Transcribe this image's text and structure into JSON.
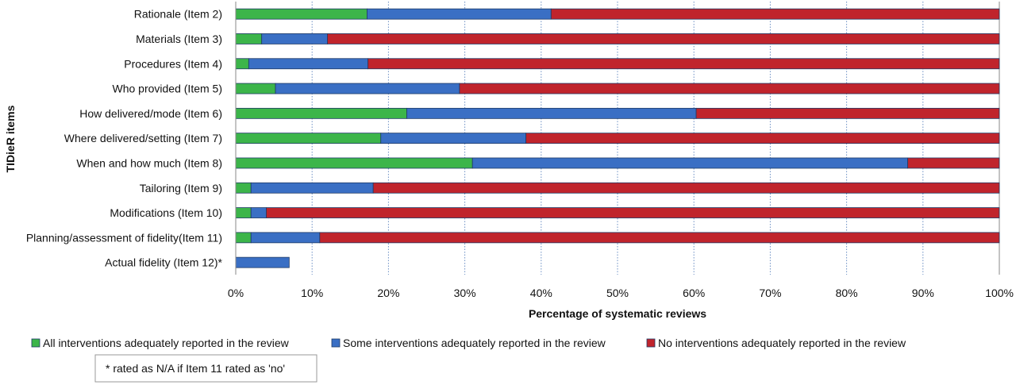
{
  "chart_data": {
    "type": "bar",
    "orientation": "horizontal",
    "stacked": true,
    "categories": [
      "Rationale (Item 2)",
      "Materials (Item 3)",
      "Procedures (Item 4)",
      "Who provided (Item 5)",
      "How delivered/mode (Item 6)",
      "Where delivered/setting (Item 7)",
      "When and how much (Item 8)",
      "Tailoring (Item 9)",
      "Modifications (Item 10)",
      "Planning/assessment of fidelity(Item 11)",
      "Actual fidelity (Item 12)*"
    ],
    "series": [
      {
        "name": "All interventions adequately reported in the review",
        "color": "#3cb54a",
        "values": [
          17.2,
          3.4,
          1.7,
          5.2,
          22.4,
          19.0,
          31.0,
          2.0,
          2.0,
          2.0,
          0
        ]
      },
      {
        "name": "Some interventions adequately reported in the review",
        "color": "#3a6fc4",
        "values": [
          24.1,
          8.6,
          15.6,
          24.1,
          37.9,
          19.0,
          57.0,
          16.0,
          2.0,
          9.0,
          7.0
        ]
      },
      {
        "name": "No interventions adequately reported in the review",
        "color": "#c0242c",
        "values": [
          58.7,
          88.0,
          82.7,
          70.7,
          39.7,
          62.0,
          12.0,
          82.0,
          96.0,
          89.0,
          0
        ]
      }
    ],
    "xlabel": "Percentage of systematic reviews",
    "ylabel": "TIDieR items",
    "xlim": [
      0,
      100
    ],
    "x_ticks": [
      "0%",
      "10%",
      "20%",
      "30%",
      "40%",
      "50%",
      "60%",
      "70%",
      "80%",
      "90%",
      "100%"
    ],
    "grid": "vertical dotted",
    "legend_position": "bottom",
    "footnote": "* rated as N/A if Item 11 rated as 'no'"
  }
}
